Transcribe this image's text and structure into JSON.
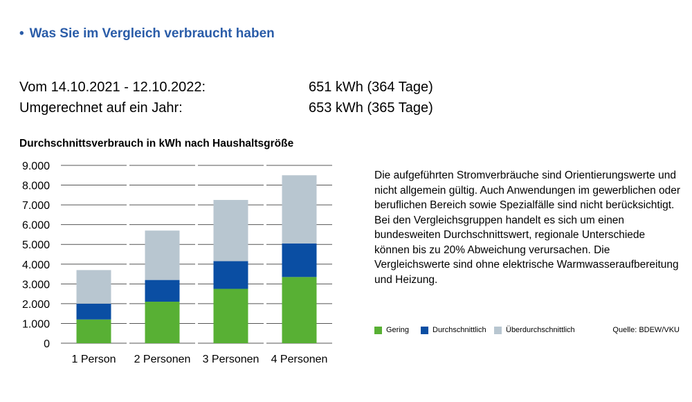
{
  "heading": {
    "bullet": "•",
    "text": "Was Sie im Vergleich verbraucht haben"
  },
  "consumption": {
    "period_label": "Vom 14.10.2021 - 12.10.2022:",
    "period_value": "651 kWh (364 Tage)",
    "annual_label": "Umgerechnet auf ein Jahr:",
    "annual_value": "653 kWh (365 Tage)"
  },
  "note": "Die aufgeführten Stromverbräuche sind Orientierungswerte und nicht allgemein gültig. Auch Anwendungen im gewerblichen oder beruflichen Bereich sowie Spezialfälle sind nicht berücksichtigt. Bei den Vergleichsgruppen handelt es sich um einen bundesweiten Durchschnittswert, regionale Unterschiede können bis zu 20% Abweichung verursachen. Die Vergleichswerte sind ohne elektrische Warmwasseraufbereitung und Heizung.",
  "source": "Quelle: BDEW/VKU",
  "chart_data": {
    "type": "bar",
    "stacked": true,
    "title": "Durchschnittsverbrauch in kWh nach Haushaltsgröße",
    "categories": [
      "1 Person",
      "2 Personen",
      "3 Personen",
      "4 Personen"
    ],
    "series": [
      {
        "name": "Gering",
        "color": "#58b034",
        "values": [
          1200,
          2100,
          2750,
          3350
        ]
      },
      {
        "name": "Durchschnittlich",
        "color": "#0a4ea3",
        "values": [
          800,
          1100,
          1400,
          1700
        ]
      },
      {
        "name": "Überdurchschnittlich",
        "color": "#b8c6d0",
        "values": [
          1700,
          2500,
          3100,
          3450
        ]
      }
    ],
    "ylim": [
      0,
      9000
    ],
    "yticks": [
      "0",
      "1.000",
      "2.000",
      "3.000",
      "4.000",
      "5.000",
      "6.000",
      "7.000",
      "8.000",
      "9.000"
    ],
    "grid": true,
    "legend": "bottom-right"
  }
}
